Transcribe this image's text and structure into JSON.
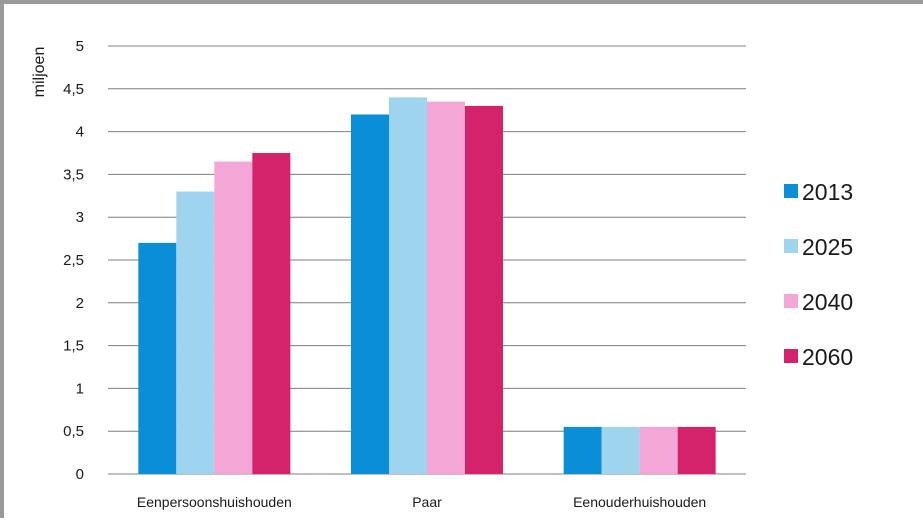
{
  "chart_data": {
    "type": "bar",
    "ylabel": "miljoen",
    "xlabel": "",
    "ylim": [
      0,
      5
    ],
    "yticks": [
      "0",
      "0,5",
      "1",
      "1,5",
      "2",
      "2,5",
      "3",
      "3,5",
      "4",
      "4,5",
      "5"
    ],
    "ytick_values": [
      0,
      0.5,
      1,
      1.5,
      2,
      2.5,
      3,
      3.5,
      4,
      4.5,
      5
    ],
    "categories": [
      "Eenpersoonshuishouden",
      "Paar",
      "Eenouderhuishouden"
    ],
    "series": [
      {
        "name": "2013",
        "color": "#0a8fd6",
        "values": [
          2.7,
          4.2,
          0.55
        ]
      },
      {
        "name": "2025",
        "color": "#9fd4ee",
        "values": [
          3.3,
          4.4,
          0.55
        ]
      },
      {
        "name": "2040",
        "color": "#f4a7d7",
        "values": [
          3.65,
          4.35,
          0.55
        ]
      },
      {
        "name": "2060",
        "color": "#d4236b",
        "values": [
          3.75,
          4.3,
          0.55
        ]
      }
    ],
    "grid": true,
    "legend_position": "right"
  }
}
